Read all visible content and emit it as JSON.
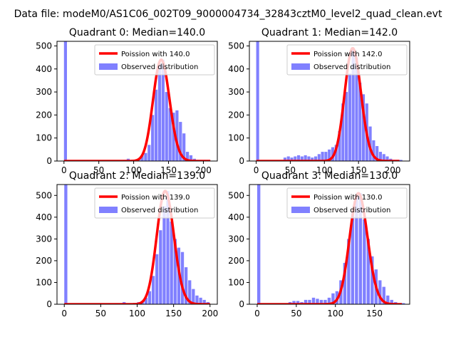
{
  "figure": {
    "suptitle": "Data file: modeM0/AS1C06_002T09_9000004734_32843cztM0_level2_quad_clean.evt"
  },
  "colors": {
    "hist": "#8080ff",
    "curve": "#ff0000",
    "axes": "#000000",
    "background": "#ffffff"
  },
  "chart_data": [
    {
      "type": "bar",
      "title": "Quadrant 0: Median=140.0",
      "legend": {
        "placement": "upper-right",
        "entries": [
          "Poission with 140.0",
          "Observed distribution"
        ]
      },
      "xlim": [
        -10,
        220
      ],
      "ylim": [
        0,
        520
      ],
      "xticks": [
        0,
        50,
        100,
        150,
        200
      ],
      "yticks": [
        0,
        100,
        200,
        300,
        400,
        500
      ],
      "bin_width": 4.3,
      "hist": [
        [
          0,
          520
        ],
        [
          85,
          5
        ],
        [
          90,
          10
        ],
        [
          95,
          5
        ],
        [
          100,
          5
        ],
        [
          105,
          10
        ],
        [
          110,
          25
        ],
        [
          115,
          35
        ],
        [
          120,
          70
        ],
        [
          125,
          200
        ],
        [
          130,
          310
        ],
        [
          135,
          420
        ],
        [
          140,
          440
        ],
        [
          145,
          300
        ],
        [
          150,
          230
        ],
        [
          155,
          210
        ],
        [
          160,
          220
        ],
        [
          165,
          170
        ],
        [
          170,
          120
        ],
        [
          175,
          40
        ],
        [
          180,
          25
        ],
        [
          185,
          10
        ],
        [
          190,
          5
        ],
        [
          195,
          5
        ],
        [
          200,
          5
        ],
        [
          205,
          5
        ]
      ],
      "poisson": {
        "mean": 140.0,
        "x_range": [
          0,
          210
        ]
      }
    },
    {
      "type": "bar",
      "title": "Quadrant 1: Median=142.0",
      "legend": {
        "placement": "upper-right",
        "entries": [
          "Poission with 142.0",
          "Observed distribution"
        ]
      },
      "xlim": [
        -10,
        225
      ],
      "ylim": [
        0,
        520
      ],
      "xticks": [
        0,
        50,
        100,
        150,
        200
      ],
      "yticks": [
        0,
        100,
        200,
        300,
        400,
        500
      ],
      "bin_width": 4.3,
      "hist": [
        [
          0,
          520
        ],
        [
          40,
          15
        ],
        [
          45,
          20
        ],
        [
          50,
          15
        ],
        [
          55,
          20
        ],
        [
          60,
          25
        ],
        [
          65,
          20
        ],
        [
          70,
          25
        ],
        [
          75,
          20
        ],
        [
          80,
          15
        ],
        [
          85,
          20
        ],
        [
          90,
          30
        ],
        [
          95,
          40
        ],
        [
          100,
          40
        ],
        [
          105,
          50
        ],
        [
          110,
          60
        ],
        [
          115,
          70
        ],
        [
          120,
          130
        ],
        [
          125,
          250
        ],
        [
          130,
          300
        ],
        [
          135,
          380
        ],
        [
          140,
          490
        ],
        [
          145,
          450
        ],
        [
          150,
          340
        ],
        [
          155,
          290
        ],
        [
          160,
          250
        ],
        [
          165,
          150
        ],
        [
          170,
          90
        ],
        [
          175,
          65
        ],
        [
          180,
          40
        ],
        [
          185,
          30
        ],
        [
          190,
          20
        ],
        [
          195,
          10
        ],
        [
          200,
          5
        ],
        [
          205,
          5
        ],
        [
          210,
          5
        ]
      ],
      "poisson": {
        "mean": 142.0,
        "x_range": [
          0,
          210
        ]
      }
    },
    {
      "type": "bar",
      "title": "Quadrant 2: Median=139.0",
      "legend": {
        "placement": "upper-right",
        "entries": [
          "Poission with 139.0",
          "Observed distribution"
        ]
      },
      "xlim": [
        -10,
        210
      ],
      "ylim": [
        0,
        550
      ],
      "xticks": [
        0,
        50,
        100,
        150,
        200
      ],
      "yticks": [
        0,
        100,
        200,
        300,
        400,
        500
      ],
      "bin_width": 4.2,
      "hist": [
        [
          0,
          550
        ],
        [
          50,
          5
        ],
        [
          60,
          5
        ],
        [
          70,
          5
        ],
        [
          80,
          10
        ],
        [
          90,
          5
        ],
        [
          100,
          10
        ],
        [
          105,
          15
        ],
        [
          110,
          30
        ],
        [
          115,
          60
        ],
        [
          120,
          130
        ],
        [
          125,
          230
        ],
        [
          130,
          340
        ],
        [
          135,
          450
        ],
        [
          140,
          520
        ],
        [
          145,
          380
        ],
        [
          150,
          300
        ],
        [
          155,
          260
        ],
        [
          160,
          240
        ],
        [
          165,
          170
        ],
        [
          170,
          110
        ],
        [
          175,
          70
        ],
        [
          180,
          40
        ],
        [
          185,
          30
        ],
        [
          190,
          20
        ],
        [
          195,
          10
        ]
      ],
      "poisson": {
        "mean": 139.0,
        "x_range": [
          0,
          200
        ]
      }
    },
    {
      "type": "bar",
      "title": "Quadrant 3: Median=130.0",
      "legend": {
        "placement": "upper-right",
        "entries": [
          "Poission with 130.0",
          "Observed distribution"
        ]
      },
      "xlim": [
        -10,
        195
      ],
      "ylim": [
        0,
        550
      ],
      "xticks": [
        0,
        50,
        100,
        150
      ],
      "yticks": [
        0,
        100,
        200,
        300,
        400,
        500
      ],
      "bin_width": 4.0,
      "hist": [
        [
          0,
          550
        ],
        [
          40,
          10
        ],
        [
          45,
          15
        ],
        [
          50,
          15
        ],
        [
          55,
          10
        ],
        [
          60,
          20
        ],
        [
          65,
          20
        ],
        [
          70,
          30
        ],
        [
          75,
          25
        ],
        [
          80,
          20
        ],
        [
          85,
          20
        ],
        [
          90,
          30
        ],
        [
          95,
          50
        ],
        [
          100,
          60
        ],
        [
          105,
          110
        ],
        [
          110,
          190
        ],
        [
          115,
          300
        ],
        [
          120,
          420
        ],
        [
          125,
          500
        ],
        [
          130,
          510
        ],
        [
          135,
          390
        ],
        [
          140,
          300
        ],
        [
          145,
          220
        ],
        [
          150,
          160
        ],
        [
          155,
          110
        ],
        [
          160,
          80
        ],
        [
          165,
          40
        ],
        [
          170,
          20
        ],
        [
          175,
          10
        ],
        [
          180,
          5
        ],
        [
          185,
          5
        ]
      ],
      "poisson": {
        "mean": 130.0,
        "x_range": [
          0,
          185
        ]
      }
    }
  ]
}
